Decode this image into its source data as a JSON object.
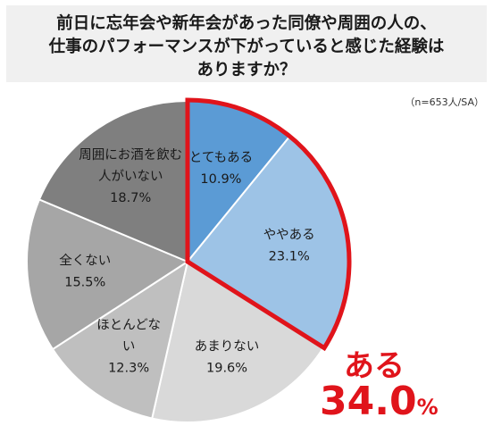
{
  "title": {
    "line1": "前日に忘年会や新年会があった同僚や周囲の人の、",
    "line2": "仕事のパフォーマンスが下がっていると感じた経験は",
    "line3": "ありますか？"
  },
  "note": "（n=653人/SA）",
  "callout": {
    "label": "ある",
    "value": "34.0",
    "unit": "%"
  },
  "chart_data": {
    "type": "pie",
    "start": "12 o'clock",
    "direction": "clockwise",
    "slices": [
      {
        "label_lines": [
          "とてもある"
        ],
        "value_text": "10.9%",
        "value": 10.9,
        "color": "#5b9bd5",
        "text_color": "#1a1a1a"
      },
      {
        "label_lines": [
          "ややある"
        ],
        "value_text": "23.1%",
        "value": 23.1,
        "color": "#9dc3e6",
        "text_color": "#1a1a1a"
      },
      {
        "label_lines": [
          "あまりない"
        ],
        "value_text": "19.6%",
        "value": 19.6,
        "color": "#d9d9d9",
        "text_color": "#1a1a1a"
      },
      {
        "label_lines": [
          "ほとんどな",
          "い"
        ],
        "value_text": "12.3%",
        "value": 12.3,
        "color": "#bfbfbf",
        "text_color": "#1a1a1a"
      },
      {
        "label_lines": [
          "全くない"
        ],
        "value_text": "15.5%",
        "value": 15.5,
        "color": "#a6a6a6",
        "text_color": "#1a1a1a"
      },
      {
        "label_lines": [
          "周囲にお酒を飲む",
          "人がいない"
        ],
        "value_text": "18.7%",
        "value": 18.7,
        "color": "#7f7f7f",
        "text_color": "#1a1a1a"
      }
    ],
    "highlighted_group": [
      "とてもある",
      "ややある"
    ],
    "highlight_color": "#e0141b"
  }
}
